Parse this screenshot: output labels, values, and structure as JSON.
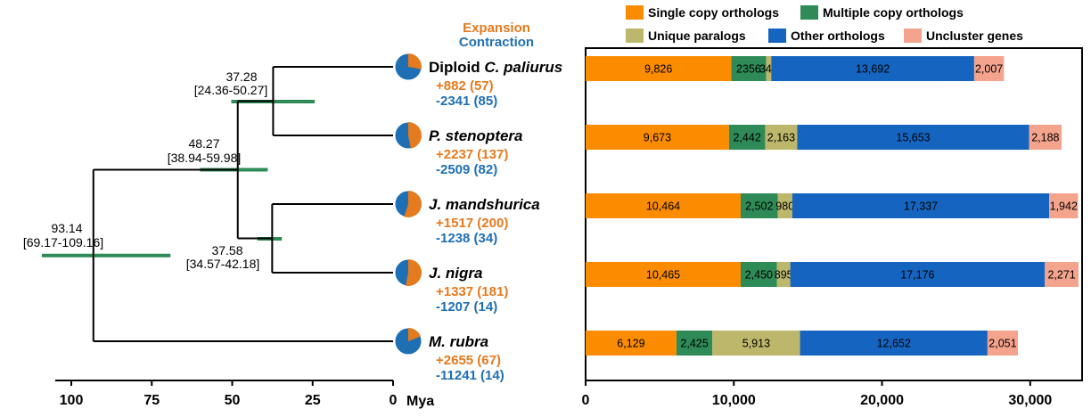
{
  "colors": {
    "single": "#fb8c00",
    "multiple": "#2e8b57",
    "unique": "#bdb76b",
    "other": "#1565c0",
    "uncluster": "#f4a38c",
    "expansion": "#e57a1e",
    "contraction": "#1f6fb4",
    "ci_bar": "#2e8b57"
  },
  "pie_legend": {
    "expansion": "Expansion",
    "contraction": "Contraction"
  },
  "tree": {
    "axis_unit": "Mya",
    "ticks": [
      100,
      75,
      50,
      25,
      0
    ],
    "xlim": [
      105,
      0
    ],
    "nodes": [
      {
        "id": "root",
        "age": 93.14,
        "age_label": "93.14",
        "ci_label": "[69.17-109.16]",
        "ci": [
          69.17,
          109.16
        ]
      },
      {
        "id": "n48",
        "age": 48.27,
        "age_label": "48.27",
        "ci_label": "[38.94-59.98]",
        "ci": [
          38.94,
          59.98
        ]
      },
      {
        "id": "n37",
        "age": 37.28,
        "age_label": "37.28",
        "ci_label": "[24.36-50.27]",
        "ci": [
          24.36,
          50.27
        ]
      },
      {
        "id": "nj",
        "age": 37.58,
        "age_label": "37.58",
        "ci_label": "[34.57-42.18]",
        "ci": [
          34.57,
          42.18
        ]
      }
    ]
  },
  "species": [
    {
      "name_prefix": "Diploid ",
      "name_italic": "C. paliurus",
      "expansion": "+882 (57)",
      "contraction": "-2341 (85)",
      "pie_exp": 0.28
    },
    {
      "name_prefix": "",
      "name_italic": "P. stenoptera",
      "expansion": "+2237 (137)",
      "contraction": "-2509 (82)",
      "pie_exp": 0.47
    },
    {
      "name_prefix": "",
      "name_italic": "J. mandshurica",
      "expansion": "+1517 (200)",
      "contraction": "-1238 (34)",
      "pie_exp": 0.55
    },
    {
      "name_prefix": "",
      "name_italic": "J. nigra",
      "expansion": "+1337 (181)",
      "contraction": "-1207 (14)",
      "pie_exp": 0.53
    },
    {
      "name_prefix": "",
      "name_italic": "M. rubra",
      "expansion": "+2655 (67)",
      "contraction": "-11241 (14)",
      "pie_exp": 0.19
    }
  ],
  "chart_data": {
    "type": "bar",
    "orientation": "horizontal",
    "stacked": true,
    "categories": [
      "Diploid C. paliurus",
      "P. stenoptera",
      "J. mandshurica",
      "J. nigra",
      "M. rubra"
    ],
    "series": [
      {
        "name": "Single copy orthologs",
        "key": "single",
        "values": [
          9826,
          9673,
          10464,
          10465,
          6129
        ],
        "labels": [
          "9,826",
          "9,673",
          "10,464",
          "10,465",
          "6,129"
        ]
      },
      {
        "name": "Multiple copy orthologs",
        "key": "multiple",
        "values": [
          2356,
          2442,
          2502,
          2450,
          2425
        ],
        "labels": [
          "2356",
          "2,442",
          "2,502",
          "2,450",
          "2,425"
        ]
      },
      {
        "name": "Unique paralogs",
        "key": "unique",
        "values": [
          344,
          2163,
          980,
          895,
          5913
        ],
        "labels": [
          "344",
          "2,163",
          "980",
          "895",
          "5,913"
        ]
      },
      {
        "name": "Other orthologs",
        "key": "other",
        "values": [
          13692,
          15653,
          17337,
          17176,
          12652
        ],
        "labels": [
          "13,692",
          "15,653",
          "17,337",
          "17,176",
          "12,652"
        ]
      },
      {
        "name": "Uncluster genes",
        "key": "uncluster",
        "values": [
          2007,
          2188,
          1942,
          2271,
          2051
        ],
        "labels": [
          "2,007",
          "2,188",
          "1,942",
          "2,271",
          "2,051"
        ]
      }
    ],
    "xlim": [
      0,
      33500
    ],
    "xticks": [
      0,
      10000,
      20000,
      30000
    ],
    "xtick_labels": [
      "0",
      "10,000",
      "20,000",
      "30,000"
    ],
    "legend_placement": "top"
  }
}
